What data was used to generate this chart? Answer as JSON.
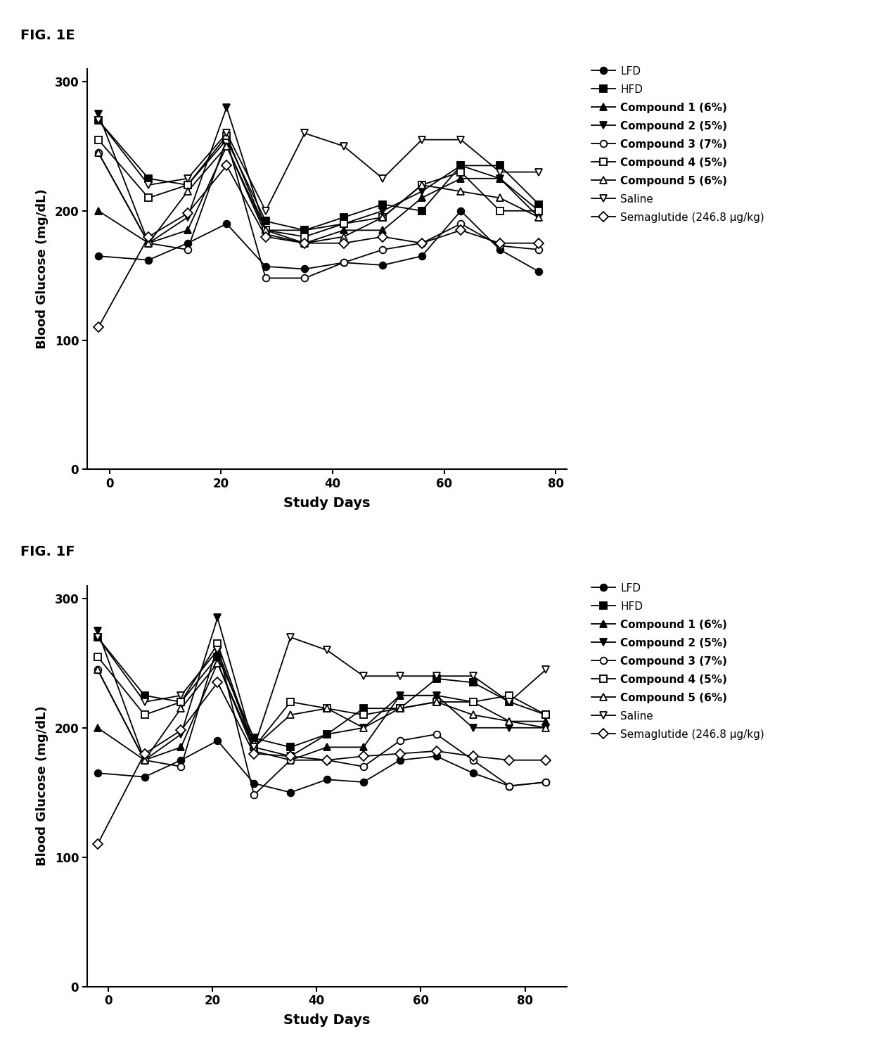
{
  "fig1e": {
    "title": "FIG. 1E",
    "xlabel": "Study Days",
    "ylabel": "Blood Glucose (mg/dL)",
    "ylim": [
      0,
      310
    ],
    "yticks": [
      0,
      100,
      200,
      300
    ],
    "xlim": [
      -4,
      82
    ],
    "xticks": [
      0,
      20,
      40,
      60,
      80
    ],
    "series": [
      {
        "name": "LFD",
        "marker": "o",
        "fillstyle": "full",
        "x": [
          -2,
          7,
          14,
          21,
          28,
          35,
          42,
          49,
          56,
          63,
          70,
          77
        ],
        "y": [
          165,
          162,
          175,
          190,
          157,
          155,
          160,
          158,
          165,
          200,
          170,
          153
        ]
      },
      {
        "name": "HFD",
        "marker": "s",
        "fillstyle": "full",
        "x": [
          -2,
          7,
          14,
          21,
          28,
          35,
          42,
          49,
          56,
          63,
          70,
          77
        ],
        "y": [
          270,
          225,
          220,
          255,
          192,
          185,
          195,
          205,
          200,
          235,
          235,
          205
        ]
      },
      {
        "name": "Compound 1 (6%)",
        "marker": "^",
        "fillstyle": "full",
        "x": [
          -2,
          7,
          14,
          21,
          28,
          35,
          42,
          49,
          56,
          63,
          70,
          77
        ],
        "y": [
          200,
          175,
          185,
          250,
          182,
          175,
          185,
          185,
          210,
          225,
          225,
          200
        ]
      },
      {
        "name": "Compound 2 (5%)",
        "marker": "v",
        "fillstyle": "full",
        "x": [
          -2,
          7,
          14,
          21,
          28,
          35,
          42,
          49,
          56,
          63,
          70,
          77
        ],
        "y": [
          275,
          175,
          195,
          280,
          185,
          185,
          190,
          200,
          215,
          235,
          225,
          195
        ]
      },
      {
        "name": "Compound 3 (7%)",
        "marker": "o",
        "fillstyle": "none",
        "x": [
          -2,
          7,
          14,
          21,
          28,
          35,
          42,
          49,
          56,
          63,
          70,
          77
        ],
        "y": [
          245,
          175,
          170,
          255,
          148,
          148,
          160,
          170,
          175,
          190,
          173,
          170
        ]
      },
      {
        "name": "Compound 4 (5%)",
        "marker": "s",
        "fillstyle": "none",
        "x": [
          -2,
          7,
          14,
          21,
          28,
          35,
          42,
          49,
          56,
          63,
          70,
          77
        ],
        "y": [
          255,
          210,
          220,
          258,
          185,
          180,
          190,
          195,
          220,
          230,
          200,
          200
        ]
      },
      {
        "name": "Compound 5 (6%)",
        "marker": "^",
        "fillstyle": "none",
        "x": [
          -2,
          7,
          14,
          21,
          28,
          35,
          42,
          49,
          56,
          63,
          70,
          77
        ],
        "y": [
          245,
          175,
          215,
          250,
          185,
          175,
          180,
          195,
          220,
          215,
          210,
          195
        ]
      },
      {
        "name": "Saline",
        "marker": "v",
        "fillstyle": "none",
        "x": [
          -2,
          7,
          14,
          21,
          28,
          35,
          42,
          49,
          56,
          63,
          70,
          77
        ],
        "y": [
          270,
          220,
          225,
          260,
          200,
          260,
          250,
          225,
          255,
          255,
          230,
          230
        ]
      },
      {
        "name": "Semaglutide (246.8 μg/kg)",
        "marker": "D",
        "fillstyle": "none",
        "x": [
          -2,
          7,
          14,
          21,
          28,
          35,
          42,
          49,
          56,
          63,
          70,
          77
        ],
        "y": [
          110,
          180,
          198,
          235,
          180,
          175,
          175,
          180,
          175,
          185,
          175,
          175
        ]
      }
    ]
  },
  "fig1f": {
    "title": "FIG. 1F",
    "xlabel": "Study Days",
    "ylabel": "Blood Glucose (mg/dL)",
    "ylim": [
      0,
      310
    ],
    "yticks": [
      0,
      100,
      200,
      300
    ],
    "xlim": [
      -4,
      88
    ],
    "xticks": [
      0,
      20,
      40,
      60,
      80
    ],
    "series": [
      {
        "name": "LFD",
        "marker": "o",
        "fillstyle": "full",
        "x": [
          -2,
          7,
          14,
          21,
          28,
          35,
          42,
          49,
          56,
          63,
          70,
          77,
          84
        ],
        "y": [
          165,
          162,
          175,
          190,
          157,
          150,
          160,
          158,
          175,
          178,
          165,
          155,
          158
        ]
      },
      {
        "name": "HFD",
        "marker": "s",
        "fillstyle": "full",
        "x": [
          -2,
          7,
          14,
          21,
          28,
          35,
          42,
          49,
          56,
          63,
          70,
          77,
          84
        ],
        "y": [
          270,
          225,
          220,
          255,
          192,
          185,
          195,
          215,
          215,
          238,
          235,
          220,
          210
        ]
      },
      {
        "name": "Compound 1 (6%)",
        "marker": "^",
        "fillstyle": "full",
        "x": [
          -2,
          7,
          14,
          21,
          28,
          35,
          42,
          49,
          56,
          63,
          70,
          77,
          84
        ],
        "y": [
          200,
          175,
          185,
          250,
          182,
          175,
          185,
          185,
          225,
          225,
          220,
          205,
          205
        ]
      },
      {
        "name": "Compound 2 (5%)",
        "marker": "v",
        "fillstyle": "full",
        "x": [
          -2,
          7,
          14,
          21,
          28,
          35,
          42,
          49,
          56,
          63,
          70,
          77,
          84
        ],
        "y": [
          275,
          175,
          195,
          285,
          185,
          178,
          195,
          200,
          225,
          225,
          200,
          200,
          200
        ]
      },
      {
        "name": "Compound 3 (7%)",
        "marker": "o",
        "fillstyle": "none",
        "x": [
          -2,
          7,
          14,
          21,
          28,
          35,
          42,
          49,
          56,
          63,
          70,
          77,
          84
        ],
        "y": [
          245,
          175,
          170,
          263,
          148,
          175,
          175,
          170,
          190,
          195,
          175,
          155,
          158
        ]
      },
      {
        "name": "Compound 4 (5%)",
        "marker": "s",
        "fillstyle": "none",
        "x": [
          -2,
          7,
          14,
          21,
          28,
          35,
          42,
          49,
          56,
          63,
          70,
          77,
          84
        ],
        "y": [
          255,
          210,
          220,
          265,
          185,
          220,
          215,
          210,
          215,
          220,
          220,
          225,
          210
        ]
      },
      {
        "name": "Compound 5 (6%)",
        "marker": "^",
        "fillstyle": "none",
        "x": [
          -2,
          7,
          14,
          21,
          28,
          35,
          42,
          49,
          56,
          63,
          70,
          77,
          84
        ],
        "y": [
          245,
          175,
          215,
          250,
          185,
          210,
          215,
          200,
          215,
          220,
          210,
          205,
          200
        ]
      },
      {
        "name": "Saline",
        "marker": "v",
        "fillstyle": "none",
        "x": [
          -2,
          7,
          14,
          21,
          28,
          35,
          42,
          49,
          56,
          63,
          70,
          77,
          84
        ],
        "y": [
          270,
          220,
          225,
          260,
          185,
          270,
          260,
          240,
          240,
          240,
          240,
          220,
          245
        ]
      },
      {
        "name": "Semaglutide (246.8 μg/kg)",
        "marker": "D",
        "fillstyle": "none",
        "x": [
          -2,
          7,
          14,
          21,
          28,
          35,
          42,
          49,
          56,
          63,
          70,
          77,
          84
        ],
        "y": [
          110,
          180,
          198,
          235,
          180,
          178,
          175,
          178,
          180,
          182,
          178,
          175,
          175
        ]
      }
    ]
  },
  "background_color": "#ffffff",
  "line_color": "#000000",
  "linewidth": 1.3,
  "markersize": 7,
  "title_fontsize": 14,
  "label_fontsize": 13,
  "tick_fontsize": 12,
  "legend_fontsize": 11
}
